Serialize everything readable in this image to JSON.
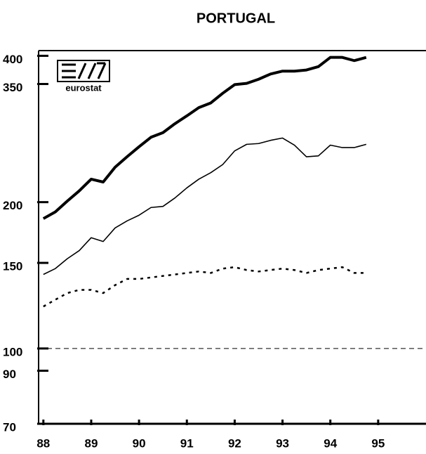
{
  "chart_data": {
    "type": "line",
    "title": "PORTUGAL",
    "logo": "eurostat",
    "x": [
      88,
      88.25,
      88.5,
      88.75,
      89,
      89.25,
      89.5,
      89.75,
      90,
      90.25,
      90.5,
      90.75,
      91,
      91.25,
      91.5,
      91.75,
      92,
      92.25,
      92.5,
      92.75,
      93,
      93.25,
      93.5,
      93.75,
      94,
      94.25,
      94.5,
      94.75
    ],
    "series": [
      {
        "color": "#000000",
        "style": "thick",
        "values": [
          185,
          191,
          201,
          211,
          223,
          220,
          236,
          248,
          260,
          272,
          278,
          290,
          301,
          313,
          320,
          335,
          349,
          351,
          358,
          367,
          372,
          372,
          374,
          380,
          397,
          397,
          391,
          397
        ]
      },
      {
        "color": "#000000",
        "style": "thin",
        "values": [
          142,
          146,
          153,
          159,
          169,
          166,
          177,
          183,
          188,
          195,
          196,
          204,
          214,
          223,
          230,
          239,
          255,
          263,
          264,
          268,
          271,
          262,
          248,
          249,
          262,
          259,
          259,
          263
        ]
      },
      {
        "color": "#000000",
        "style": "dotted",
        "values": [
          122,
          126,
          130,
          132,
          132,
          130,
          135,
          139,
          139,
          140,
          141,
          142,
          143,
          144,
          143,
          146,
          147,
          145,
          144,
          145,
          146,
          145,
          143,
          145,
          146,
          147,
          143,
          143
        ]
      }
    ],
    "reference_line": 100,
    "xlim": [
      87.9,
      96
    ],
    "xticks": [
      88,
      89,
      90,
      91,
      92,
      93,
      94,
      95
    ],
    "ylim": [
      70,
      410
    ],
    "yticks": [
      70,
      90,
      100,
      150,
      200,
      350,
      400
    ],
    "log_y": true
  }
}
